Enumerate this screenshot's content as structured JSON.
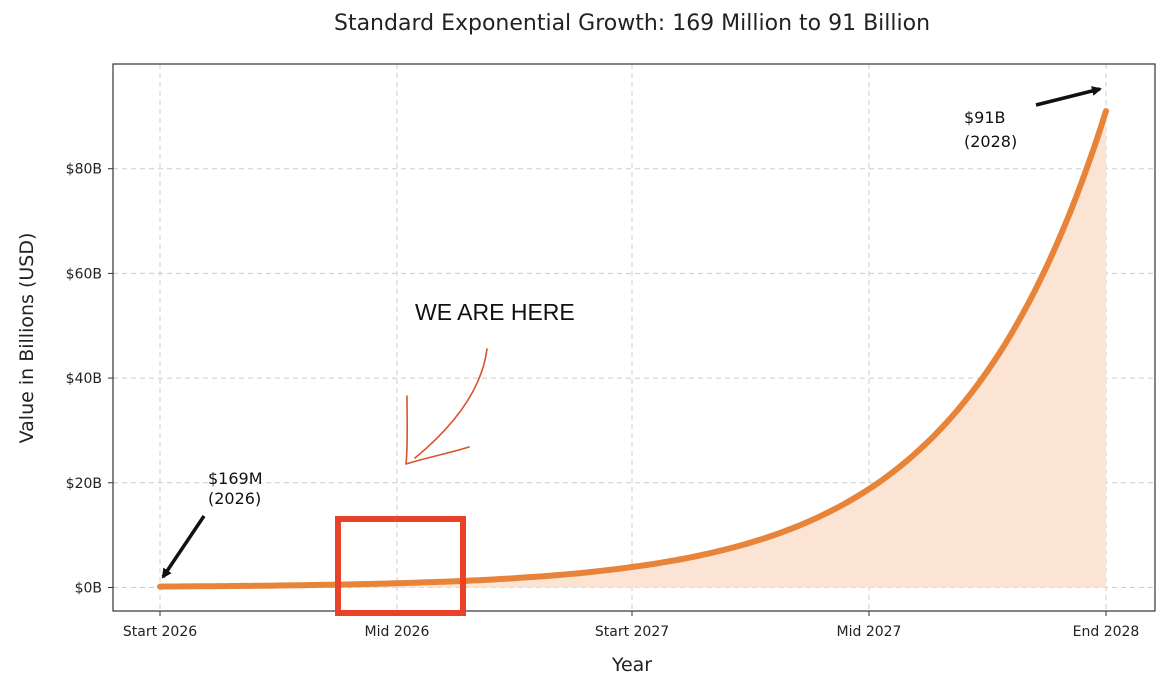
{
  "chart_data": {
    "type": "area",
    "title": "Standard Exponential Growth: 169 Million to 91 Billion",
    "xlabel": "Year",
    "ylabel": "Value in Billions (USD)",
    "x_tick_labels": [
      "Start 2026",
      "Mid 2026",
      "Start 2027",
      "Mid 2027",
      "End 2028"
    ],
    "y_ticks": [
      0,
      20,
      40,
      60,
      80
    ],
    "y_tick_labels": [
      "$0B",
      "$20B",
      "$40B",
      "$60B",
      "$80B"
    ],
    "ylim": [
      -4.5,
      100
    ],
    "grid": true,
    "series": [
      {
        "x": [
          "Start 2026",
          "Mid 2026",
          "Start 2027",
          "Mid 2027",
          "End 2028"
        ],
        "values": [
          0.169,
          0.8,
          3.9,
          18.8,
          91
        ]
      }
    ],
    "annotations": [
      {
        "text_line1": "$169M",
        "text_line2": "(2026)",
        "points_to_x": "Start 2026",
        "points_to_y": 0.169
      },
      {
        "text_line1": "$91B",
        "text_line2": "(2028)",
        "points_to_x": "End 2028",
        "points_to_y": 91
      },
      {
        "text": "WE ARE HERE",
        "highlight_x": "Mid 2026"
      }
    ],
    "colors": {
      "line": "#e8833a",
      "fill": "#fbe4d3",
      "grid": "#cccccc",
      "highlight_box": "#e8432a",
      "handwritten_arrow": "#d9542c",
      "arrow": "#111111"
    }
  }
}
